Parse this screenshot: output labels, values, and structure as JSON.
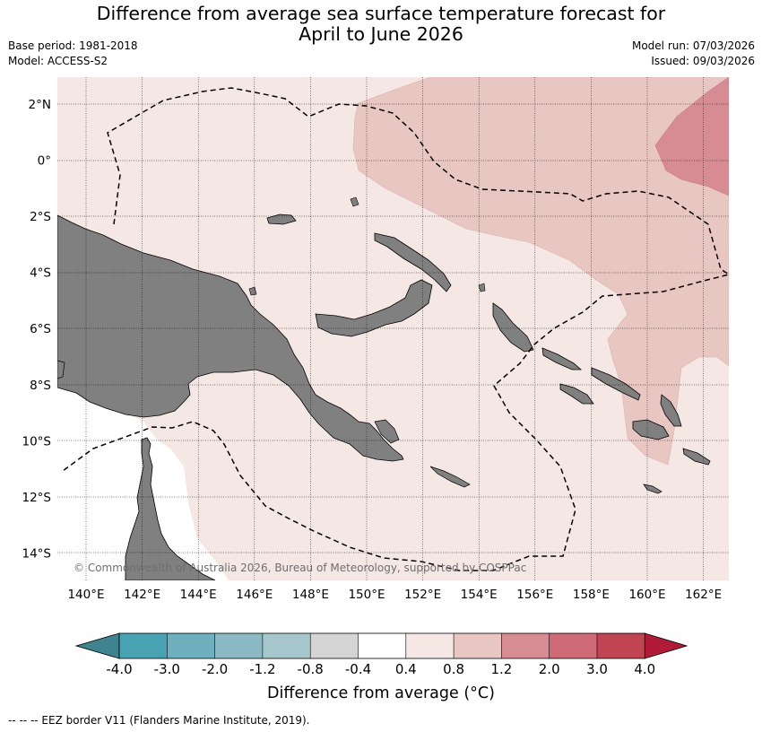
{
  "title_line1": "Difference from average sea surface temperature forecast for",
  "title_line2": "April to June 2026",
  "base_period": "Base period: 1981-2018",
  "model": "Model: ACCESS-S2",
  "model_run": "Model run: 07/03/2026",
  "issued": "Issued: 09/03/2026",
  "copyright": "© Commonwealth of Australia 2026, Bureau of Meteorology, supported by COSPPac",
  "lon_ticks": [
    "140°E",
    "142°E",
    "144°E",
    "146°E",
    "148°E",
    "150°E",
    "152°E",
    "154°E",
    "156°E",
    "158°E",
    "160°E",
    "162°E"
  ],
  "lat_ticks": [
    "2°N",
    "0°",
    "2°S",
    "4°S",
    "6°S",
    "8°S",
    "10°S",
    "12°S",
    "14°S"
  ],
  "legend": {
    "labels": [
      "-4.0",
      "-3.0",
      "-2.0",
      "-1.2",
      "-0.8",
      "-0.4",
      "0.4",
      "0.8",
      "1.2",
      "2.0",
      "3.0",
      "4.0"
    ],
    "colors": [
      "#3e838e",
      "#47a2b2",
      "#6fb0be",
      "#8ab8c3",
      "#a6c8cc",
      "#d4d4d4",
      "#ffffff",
      "#f5e7e4",
      "#e8c6c1",
      "#d78c94",
      "#cd6a75",
      "#c14452",
      "#b21a3a"
    ],
    "title": "Difference from average (°C)"
  },
  "footnote": "-- -- -- EEZ border V11 (Flanders Marine Institute, 2019).",
  "colors": {
    "land": "#808080",
    "ocean_base": "#f5e7e4",
    "anomaly_08_12": "#e8c6c1",
    "anomaly_12_20": "#d78c94"
  }
}
